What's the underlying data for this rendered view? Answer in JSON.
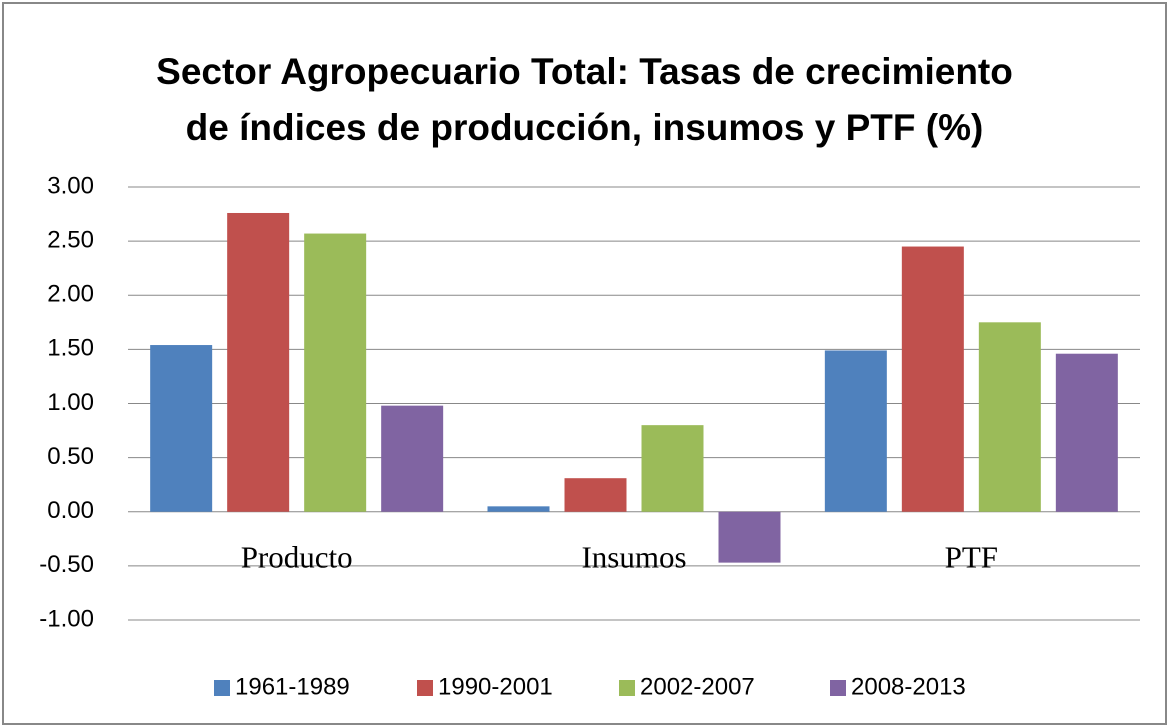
{
  "chart_data": {
    "type": "bar",
    "title": "Sector Agropecuario Total: Tasas de crecimiento\nde índices de producción, insumos y PTF (%)",
    "categories": [
      "Producto",
      "Insumos",
      "PTF"
    ],
    "series": [
      {
        "name": "1961-1989",
        "color": "#4f81bd",
        "values": [
          1.54,
          0.05,
          1.49
        ]
      },
      {
        "name": "1990-2001",
        "color": "#c0504d",
        "values": [
          2.76,
          0.31,
          2.45
        ]
      },
      {
        "name": "2002-2007",
        "color": "#9bbb59",
        "values": [
          2.57,
          0.8,
          1.75
        ]
      },
      {
        "name": "2008-2013",
        "color": "#8064a2",
        "values": [
          0.98,
          -0.47,
          1.46
        ]
      }
    ],
    "ylim": [
      -1,
      3
    ],
    "yticks": [
      {
        "value": -1,
        "label": "-1.00"
      },
      {
        "value": -0.5,
        "label": "-0.50"
      },
      {
        "value": 0,
        "label": "0.00"
      },
      {
        "value": 0.5,
        "label": "0.50"
      },
      {
        "value": 1,
        "label": "1.00"
      },
      {
        "value": 1.5,
        "label": "1.50"
      },
      {
        "value": 2,
        "label": "2.00"
      },
      {
        "value": 2.5,
        "label": "2.50"
      },
      {
        "value": 3,
        "label": "3.00"
      }
    ],
    "grid": true,
    "legend": "bottom"
  }
}
